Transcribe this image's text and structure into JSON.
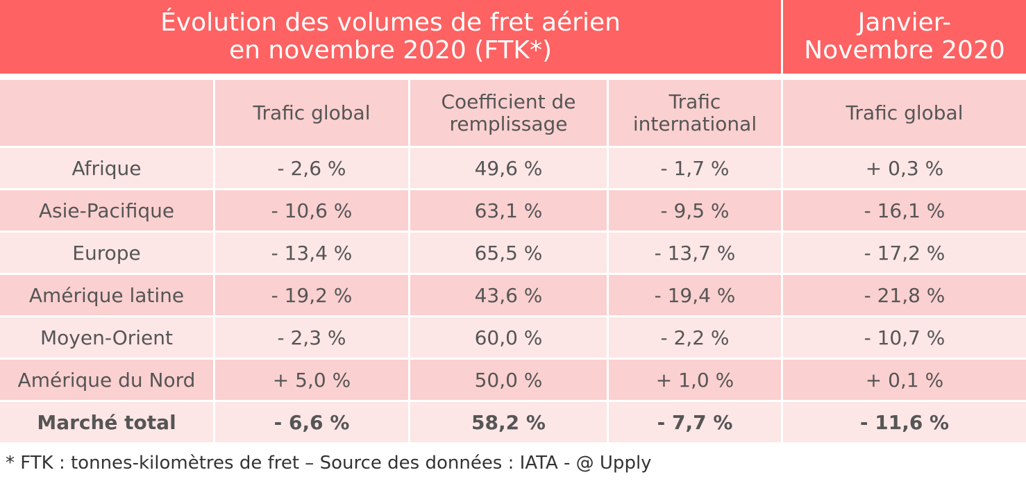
{
  "header": {
    "title_line1": "Évolution des volumes de fret aérien",
    "title_line2": "en novembre 2020 (FTK*)",
    "ytd_line1": "Janvier-",
    "ytd_line2": "Novembre 2020"
  },
  "columns": {
    "trafic_global": "Trafic global",
    "coef_line1": "Coefficient de",
    "coef_line2": "remplissage",
    "intl_line1": "Trafic",
    "intl_line2": "international",
    "ytd_trafic_global": "Trafic global"
  },
  "rows": [
    {
      "region": "Afrique",
      "trafic": "- 2,6 %",
      "coef": "49,6 %",
      "intl": "- 1,7 %",
      "ytd": "+ 0,3 %"
    },
    {
      "region": "Asie-Pacifique",
      "trafic": "- 10,6 %",
      "coef": "63,1 %",
      "intl": "- 9,5 %",
      "ytd": "- 16,1 %"
    },
    {
      "region": "Europe",
      "trafic": "- 13,4 %",
      "coef": "65,5 %",
      "intl": "- 13,7 %",
      "ytd": "- 17,2 %"
    },
    {
      "region": "Amérique latine",
      "trafic": "- 19,2 %",
      "coef": "43,6 %",
      "intl": "- 19,4 %",
      "ytd": "- 21,8 %"
    },
    {
      "region": "Moyen-Orient",
      "trafic": "- 2,3 %",
      "coef": "60,0 %",
      "intl": "- 2,2 %",
      "ytd": "- 10,7 %"
    },
    {
      "region": "Amérique du Nord",
      "trafic": "+ 5,0 %",
      "coef": "50,0 %",
      "intl": "+ 1,0 %",
      "ytd": "+ 0,1 %"
    },
    {
      "region": "Marché total",
      "trafic": "- 6,6 %",
      "coef": "58,2 %",
      "intl": "- 7,7 %",
      "ytd": "- 11,6 %"
    }
  ],
  "footnote": "* FTK : tonnes-kilomètres de fret – Source des données : IATA - @ Upply",
  "colors": {
    "header": "#fe6262",
    "row_light": "#fde6e6",
    "row_dark": "#fbd0d0"
  }
}
